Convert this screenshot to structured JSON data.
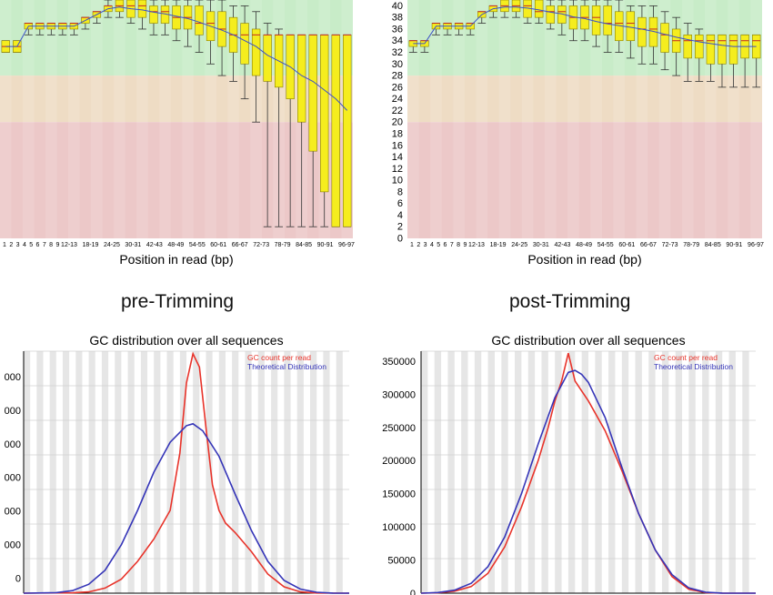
{
  "panel_titles": [
    "pre-Trimming",
    "post-Trimming"
  ],
  "colors": {
    "zone_good": "#c8ecc8",
    "zone_ok": "#eedcc4",
    "zone_bad": "#ecc8c8",
    "box_fill": "#f5ed1e",
    "box_stroke": "#8a7f00",
    "whisker": "#333333",
    "median": "#c22828",
    "mean_line": "#3c50c8",
    "gc_actual": "#e8332a",
    "gc_theory": "#3535b8",
    "grid_stripe": "#e6e6e6"
  },
  "chart_data": [
    {
      "id": "quality-pre",
      "type": "box",
      "xlabel": "Position in read (bp)",
      "x_tick_labels": [
        "1",
        "2",
        "3",
        "4",
        "5",
        "6",
        "7",
        "8",
        "9",
        "12-13",
        "18-19",
        "24-25",
        "30-31",
        "42-43",
        "48-49",
        "54-55",
        "60-61",
        "66-67",
        "72-73",
        "78-79",
        "84-85",
        "90-91",
        "96-97"
      ],
      "ylim": [
        0,
        41
      ],
      "zones": [
        {
          "from": 28,
          "to": 41,
          "level": "good"
        },
        {
          "from": 20,
          "to": 28,
          "level": "ok"
        },
        {
          "from": 0,
          "to": 20,
          "level": "bad"
        }
      ],
      "boxes": [
        [
          32,
          32,
          33,
          34,
          34
        ],
        [
          32,
          32,
          33,
          34,
          34
        ],
        [
          35,
          36,
          37,
          37,
          37
        ],
        [
          35,
          36,
          37,
          37,
          37
        ],
        [
          35,
          36,
          37,
          37,
          37
        ],
        [
          35,
          36,
          37,
          37,
          37
        ],
        [
          35,
          36,
          37,
          37,
          37
        ],
        [
          36,
          37,
          38,
          38,
          38
        ],
        [
          37,
          38,
          39,
          39,
          39
        ],
        [
          38,
          39,
          40,
          40,
          41
        ],
        [
          38,
          39,
          40,
          41,
          41
        ],
        [
          37,
          38,
          40,
          41,
          41
        ],
        [
          36,
          38,
          40,
          41,
          41
        ],
        [
          35,
          37,
          39,
          40,
          41
        ],
        [
          35,
          37,
          39,
          40,
          41
        ],
        [
          34,
          36,
          38,
          40,
          41
        ],
        [
          33,
          36,
          38,
          40,
          41
        ],
        [
          32,
          35,
          37,
          40,
          41
        ],
        [
          30,
          34,
          37,
          39,
          41
        ],
        [
          28,
          33,
          36,
          39,
          41
        ],
        [
          27,
          32,
          35,
          38,
          40
        ],
        [
          24,
          30,
          35,
          37,
          40
        ],
        [
          20,
          28,
          35,
          36,
          39
        ],
        [
          2,
          27,
          35,
          35,
          37
        ],
        [
          2,
          26,
          35,
          35,
          36
        ],
        [
          2,
          24,
          35,
          35,
          35
        ],
        [
          2,
          20,
          35,
          35,
          35
        ],
        [
          2,
          15,
          35,
          35,
          35
        ],
        [
          2,
          8,
          35,
          35,
          35
        ],
        [
          2,
          2,
          35,
          35,
          35
        ],
        [
          2,
          2,
          35,
          35,
          35
        ]
      ],
      "mean_line": [
        33,
        33,
        36.5,
        36.5,
        36.5,
        36.5,
        36.5,
        37.5,
        38.5,
        39.5,
        39.8,
        39.5,
        39.3,
        38.9,
        38.6,
        38.2,
        37.8,
        37.2,
        36.5,
        35.8,
        35,
        34,
        33,
        31.5,
        30.5,
        29.5,
        28,
        27,
        25.5,
        24,
        22
      ]
    },
    {
      "id": "quality-post",
      "type": "box",
      "xlabel": "Position in read (bp)",
      "x_tick_labels": [
        "1",
        "2",
        "3",
        "4",
        "5",
        "6",
        "7",
        "8",
        "9",
        "12-13",
        "18-19",
        "24-25",
        "30-31",
        "42-43",
        "48-49",
        "54-55",
        "60-61",
        "66-67",
        "72-73",
        "78-79",
        "84-85",
        "90-91",
        "96-97"
      ],
      "y_ticks": [
        0,
        2,
        4,
        6,
        8,
        10,
        12,
        14,
        16,
        18,
        20,
        22,
        24,
        26,
        28,
        30,
        32,
        34,
        36,
        38,
        40
      ],
      "ylim": [
        0,
        41
      ],
      "zones": [
        {
          "from": 28,
          "to": 41,
          "level": "good"
        },
        {
          "from": 20,
          "to": 28,
          "level": "ok"
        },
        {
          "from": 0,
          "to": 20,
          "level": "bad"
        }
      ],
      "boxes": [
        [
          32,
          33,
          34,
          34,
          34
        ],
        [
          32,
          33,
          34,
          34,
          34
        ],
        [
          35,
          36,
          37,
          37,
          37
        ],
        [
          35,
          36,
          37,
          37,
          37
        ],
        [
          35,
          36,
          37,
          37,
          37
        ],
        [
          35,
          36,
          37,
          37,
          37
        ],
        [
          37,
          38,
          39,
          39,
          39
        ],
        [
          38,
          39,
          40,
          40,
          40
        ],
        [
          38,
          39,
          40,
          41,
          41
        ],
        [
          38,
          39,
          40,
          41,
          41
        ],
        [
          37,
          38,
          40,
          41,
          41
        ],
        [
          37,
          38,
          39,
          41,
          41
        ],
        [
          36,
          37,
          39,
          40,
          41
        ],
        [
          35,
          37,
          39,
          40,
          41
        ],
        [
          34,
          36,
          38,
          40,
          41
        ],
        [
          34,
          36,
          38,
          40,
          41
        ],
        [
          33,
          35,
          38,
          40,
          41
        ],
        [
          32,
          35,
          37,
          40,
          41
        ],
        [
          32,
          34,
          37,
          39,
          41
        ],
        [
          31,
          34,
          37,
          39,
          40
        ],
        [
          30,
          33,
          36,
          38,
          40
        ],
        [
          30,
          33,
          36,
          38,
          40
        ],
        [
          29,
          32,
          35,
          37,
          39
        ],
        [
          28,
          32,
          34,
          36,
          38
        ],
        [
          27,
          31,
          34,
          35,
          37
        ],
        [
          27,
          31,
          34,
          35,
          36
        ],
        [
          27,
          30,
          34,
          35,
          35
        ],
        [
          26,
          30,
          34,
          35,
          35
        ],
        [
          26,
          30,
          34,
          35,
          35
        ],
        [
          26,
          31,
          34,
          35,
          35
        ],
        [
          26,
          31,
          34,
          35,
          35
        ]
      ],
      "mean_line": [
        33.5,
        33.5,
        36.5,
        36.5,
        36.5,
        36.5,
        38.5,
        39.5,
        39.8,
        39.8,
        39.6,
        39.3,
        38.9,
        38.6,
        38.1,
        37.8,
        37.3,
        36.9,
        36.6,
        36.3,
        36,
        35.6,
        35.1,
        34.6,
        34.2,
        33.8,
        33.5,
        33.2,
        33,
        33,
        33
      ]
    },
    {
      "id": "gc-pre",
      "type": "line",
      "title": "GC distribution over all sequences",
      "legend": [
        "GC count per read",
        "Theoretical Distribution"
      ],
      "y_ticks_visible": [
        "000",
        "000",
        "000",
        "000",
        "000",
        "000",
        "0"
      ],
      "ylim": [
        0,
        380000
      ],
      "series": [
        {
          "name": "GC count per read",
          "points": [
            [
              0,
              0
            ],
            [
              15,
              500
            ],
            [
              20,
              2000
            ],
            [
              25,
              8000
            ],
            [
              30,
              22000
            ],
            [
              35,
              50000
            ],
            [
              40,
              85000
            ],
            [
              45,
              130000
            ],
            [
              48,
              220000
            ],
            [
              50,
              330000
            ],
            [
              52,
              376000
            ],
            [
              54,
              355000
            ],
            [
              56,
              260000
            ],
            [
              58,
              170000
            ],
            [
              60,
              130000
            ],
            [
              62,
              110000
            ],
            [
              65,
              95000
            ],
            [
              70,
              65000
            ],
            [
              75,
              30000
            ],
            [
              80,
              10000
            ],
            [
              85,
              2000
            ],
            [
              90,
              300
            ],
            [
              100,
              0
            ]
          ]
        },
        {
          "name": "Theoretical Distribution",
          "points": [
            [
              0,
              0
            ],
            [
              10,
              800
            ],
            [
              15,
              4000
            ],
            [
              20,
              14000
            ],
            [
              25,
              36000
            ],
            [
              30,
              76000
            ],
            [
              35,
              130000
            ],
            [
              40,
              190000
            ],
            [
              45,
              237000
            ],
            [
              50,
              263000
            ],
            [
              52,
              266000
            ],
            [
              55,
              255000
            ],
            [
              60,
              215000
            ],
            [
              65,
              155000
            ],
            [
              70,
              98000
            ],
            [
              75,
              50000
            ],
            [
              80,
              20000
            ],
            [
              85,
              6500
            ],
            [
              90,
              1500
            ],
            [
              95,
              200
            ],
            [
              100,
              0
            ]
          ]
        }
      ]
    },
    {
      "id": "gc-post",
      "type": "line",
      "title": "GC distribution over all sequences",
      "legend": [
        "GC count per read",
        "Theoretical Distribution"
      ],
      "y_ticks": [
        "0",
        "50000",
        "100000",
        "150000",
        "200000",
        "250000",
        "300000",
        "350000"
      ],
      "ylim": [
        0,
        365000
      ],
      "series": [
        {
          "name": "GC count per read",
          "points": [
            [
              0,
              0
            ],
            [
              5,
              500
            ],
            [
              10,
              3000
            ],
            [
              15,
              10000
            ],
            [
              20,
              30000
            ],
            [
              25,
              70000
            ],
            [
              30,
              130000
            ],
            [
              35,
              200000
            ],
            [
              38,
              250000
            ],
            [
              40,
              290000
            ],
            [
              42,
              320000
            ],
            [
              44,
              362000
            ],
            [
              46,
              320000
            ],
            [
              48,
              305000
            ],
            [
              50,
              290000
            ],
            [
              55,
              245000
            ],
            [
              60,
              185000
            ],
            [
              65,
              120000
            ],
            [
              70,
              65000
            ],
            [
              75,
              25000
            ],
            [
              80,
              6000
            ],
            [
              85,
              800
            ],
            [
              90,
              0
            ],
            [
              100,
              0
            ]
          ]
        },
        {
          "name": "Theoretical Distribution",
          "points": [
            [
              0,
              0
            ],
            [
              5,
              1000
            ],
            [
              10,
              4500
            ],
            [
              15,
              15000
            ],
            [
              20,
              40000
            ],
            [
              25,
              85000
            ],
            [
              30,
              150000
            ],
            [
              35,
              225000
            ],
            [
              40,
              295000
            ],
            [
              44,
              333000
            ],
            [
              46,
              336000
            ],
            [
              48,
              330000
            ],
            [
              50,
              318000
            ],
            [
              55,
              265000
            ],
            [
              60,
              190000
            ],
            [
              65,
              120000
            ],
            [
              70,
              65000
            ],
            [
              75,
              28000
            ],
            [
              80,
              8000
            ],
            [
              85,
              1500
            ],
            [
              90,
              200
            ],
            [
              100,
              0
            ]
          ]
        }
      ]
    }
  ]
}
